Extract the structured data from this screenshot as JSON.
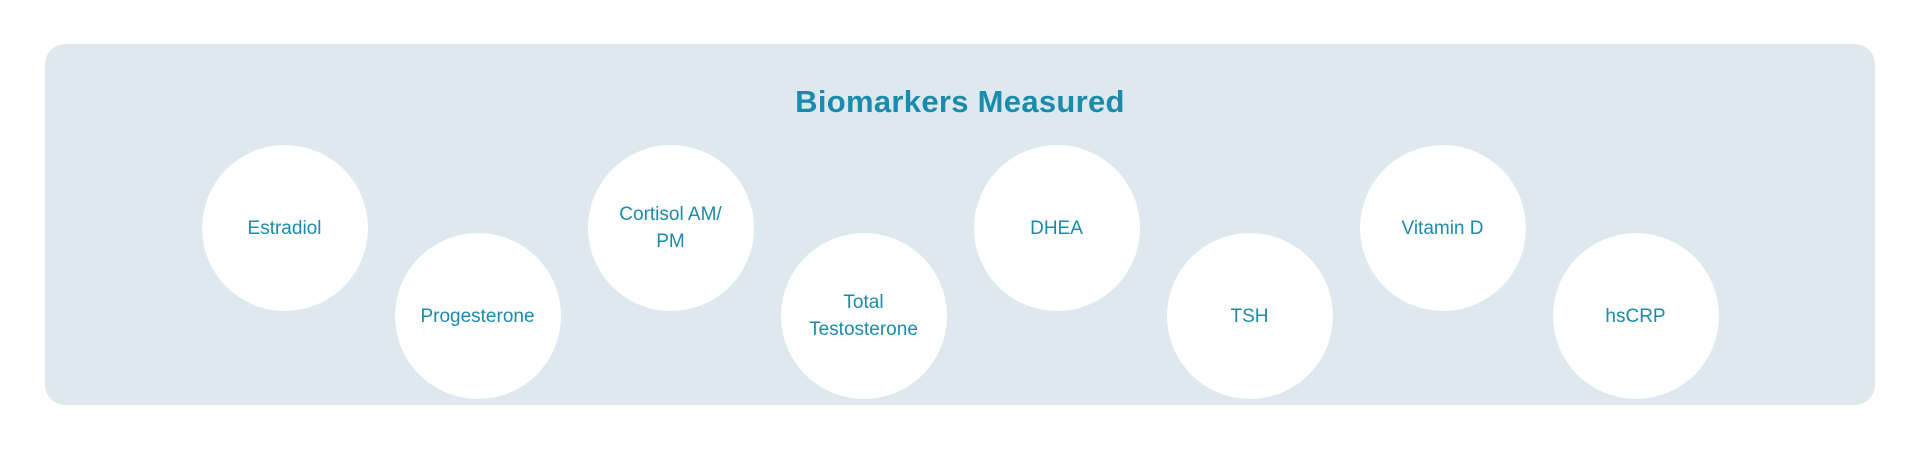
{
  "panel": {
    "title": "Biomarkers Measured",
    "background_color": "#dde9ee",
    "accent_color": "#1a8bac",
    "circle_color": "#ffffff",
    "biomarkers": [
      {
        "label": "Estradiol",
        "row": "top",
        "lines": [
          "Estradiol"
        ]
      },
      {
        "label": "Progesterone",
        "row": "bottom",
        "lines": [
          "Progesterone"
        ]
      },
      {
        "label": "Cortisol AM/PM",
        "row": "top",
        "lines": [
          "Cortisol AM/",
          "PM"
        ]
      },
      {
        "label": "Total Testosterone",
        "row": "bottom",
        "lines": [
          "Total",
          "Testosterone"
        ]
      },
      {
        "label": "DHEA",
        "row": "top",
        "lines": [
          "DHEA"
        ]
      },
      {
        "label": "TSH",
        "row": "bottom",
        "lines": [
          "TSH"
        ]
      },
      {
        "label": "Vitamin D",
        "row": "top",
        "lines": [
          "Vitamin D"
        ]
      },
      {
        "label": "hsCRP",
        "row": "bottom",
        "lines": [
          "hsCRP"
        ]
      }
    ]
  }
}
